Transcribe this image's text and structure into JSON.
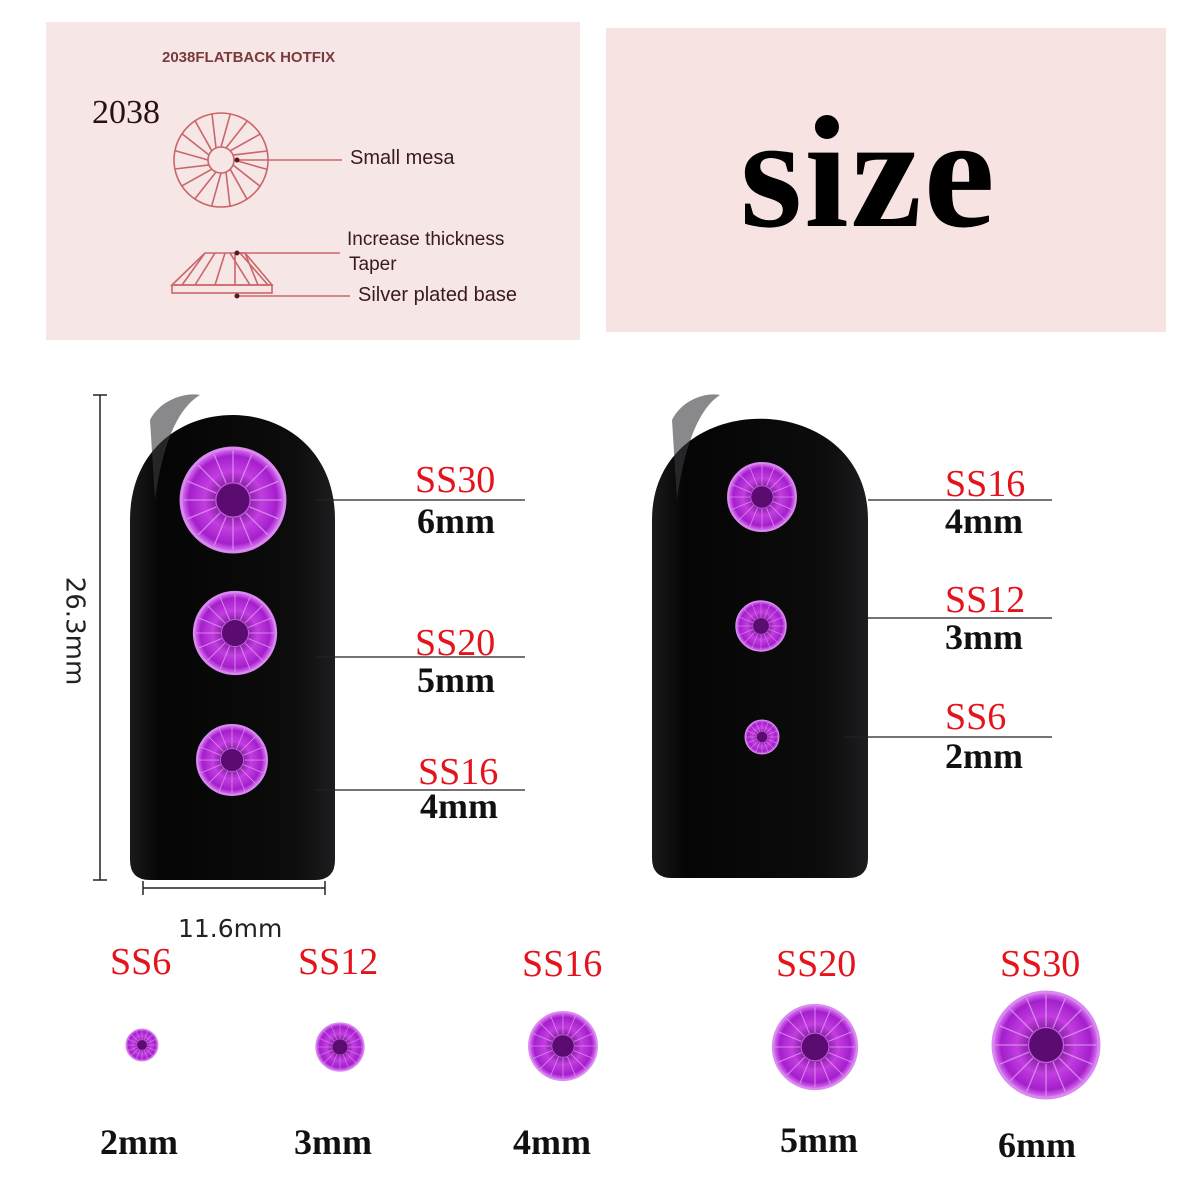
{
  "colors": {
    "panel_left": "#f6e6e6",
    "panel_right": "#f8e3e3",
    "label_red": "#e3141c",
    "diagram_line": "#c9666a",
    "nail": "#0b0b0c",
    "gem": "#b626d8"
  },
  "diagram": {
    "header": "2038FLATBACK HOTFIX",
    "model": "2038",
    "callouts": [
      "Small mesa",
      "Increase thickness",
      "Taper",
      "Silver plated base"
    ]
  },
  "title": "size",
  "nail_dimensions": {
    "height": "26.3mm",
    "width": "11.6mm"
  },
  "left_nail": [
    {
      "code": "SS30",
      "size": "6mm"
    },
    {
      "code": "SS20",
      "size": "5mm"
    },
    {
      "code": "SS16",
      "size": "4mm"
    }
  ],
  "right_nail": [
    {
      "code": "SS16",
      "size": "4mm"
    },
    {
      "code": "SS12",
      "size": "3mm"
    },
    {
      "code": "SS6",
      "size": "2mm"
    }
  ],
  "size_row": [
    {
      "code": "SS6",
      "size": "2mm"
    },
    {
      "code": "SS12",
      "size": "3mm"
    },
    {
      "code": "SS16",
      "size": "4mm"
    },
    {
      "code": "SS20",
      "size": "5mm"
    },
    {
      "code": "SS30",
      "size": "6mm"
    }
  ]
}
